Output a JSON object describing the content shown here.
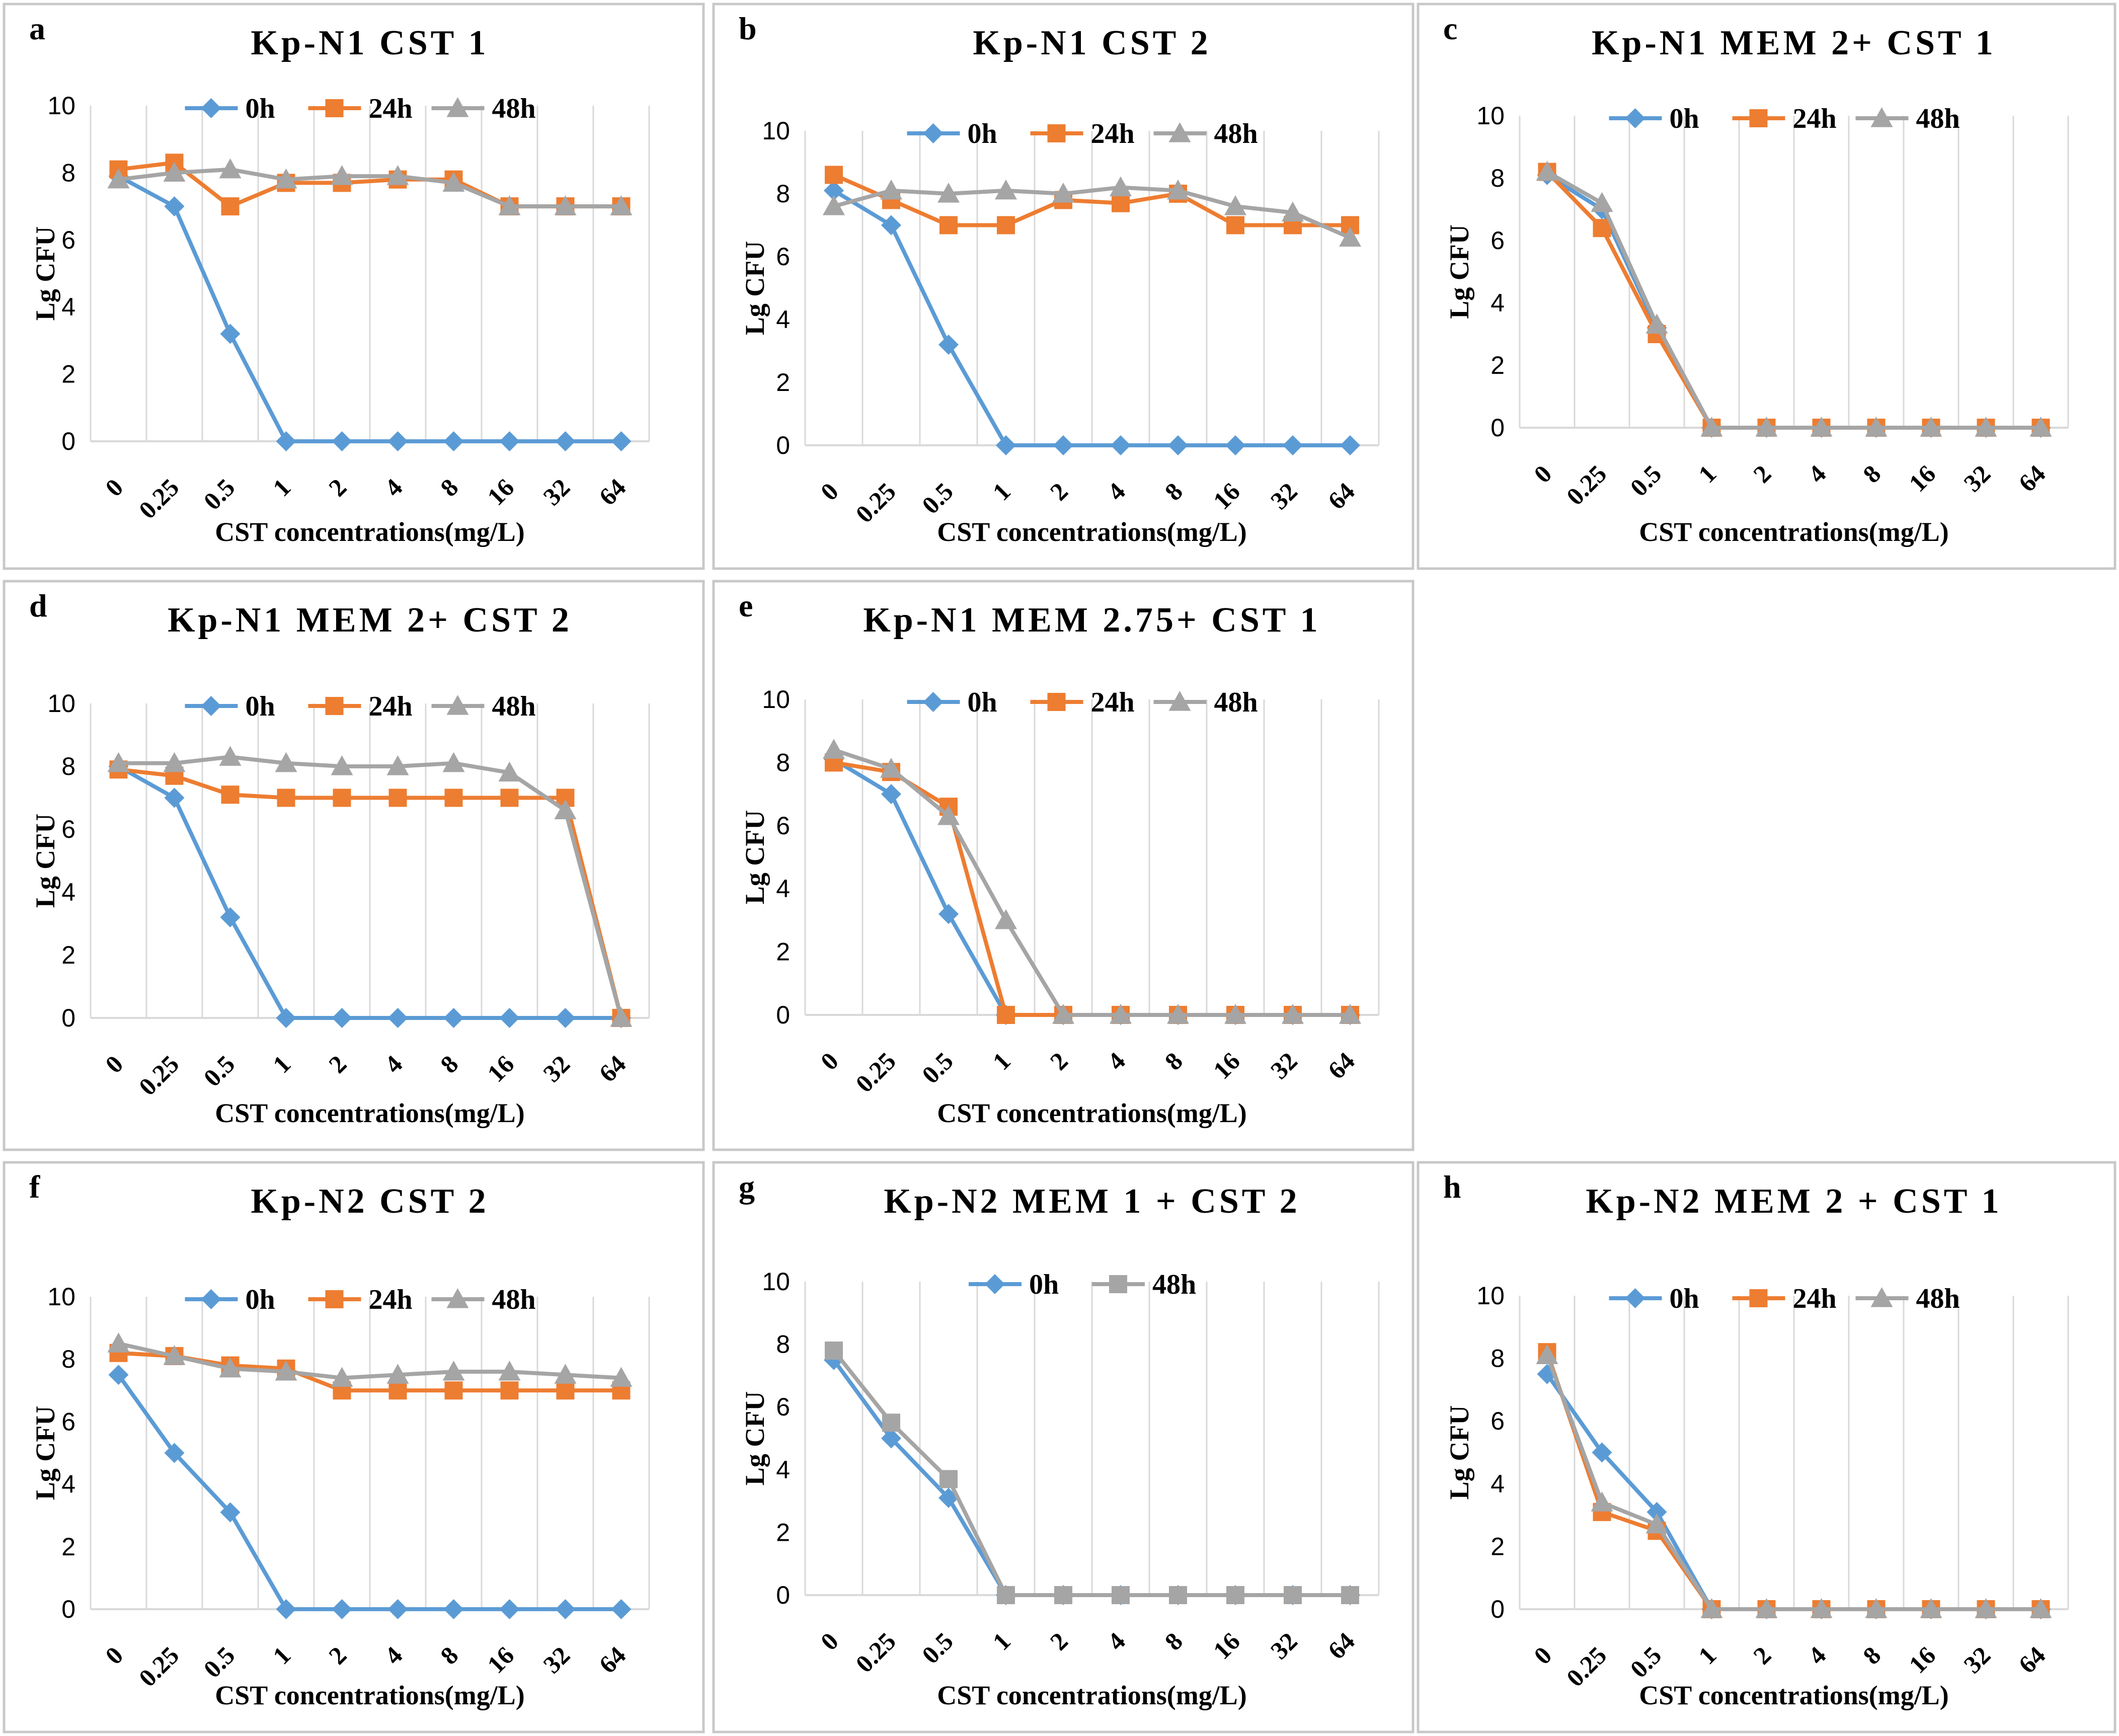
{
  "colors": {
    "0h": "#5b9bd5",
    "24h": "#ed7d31",
    "48h": "#a5a5a5"
  },
  "markers": {
    "0h": "diamond",
    "24h": "square",
    "48h": "triangle"
  },
  "chart_data": [
    {
      "panel": "a",
      "type": "line",
      "title": "Kp-N1 CST 1",
      "xlabel": "CST concentrations(mg/L)",
      "ylabel": "Lg CFU",
      "categories": [
        "0",
        "0.25",
        "0.5",
        "1",
        "2",
        "4",
        "8",
        "16",
        "32",
        "64"
      ],
      "ylim": [
        0,
        10
      ],
      "yticks": [
        "0",
        "2",
        "4",
        "6",
        "8",
        "10"
      ],
      "grid": "vertical",
      "legend": "top",
      "series": [
        {
          "name": "0h",
          "marker": "diamond",
          "values": [
            7.9,
            7.0,
            3.2,
            0,
            0,
            0,
            0,
            0,
            0,
            0
          ]
        },
        {
          "name": "24h",
          "marker": "square",
          "values": [
            8.1,
            8.3,
            7.0,
            7.7,
            7.7,
            7.8,
            7.8,
            7.0,
            7.0,
            7.0
          ]
        },
        {
          "name": "48h",
          "marker": "triangle",
          "values": [
            7.8,
            8.0,
            8.1,
            7.8,
            7.9,
            7.9,
            7.7,
            7.0,
            7.0,
            7.0
          ]
        }
      ]
    },
    {
      "panel": "b",
      "type": "line",
      "title": "Kp-N1 CST 2",
      "xlabel": "CST concentrations(mg/L)",
      "ylabel": "Lg CFU",
      "categories": [
        "0",
        "0.25",
        "0.5",
        "1",
        "2",
        "4",
        "8",
        "16",
        "32",
        "64"
      ],
      "ylim": [
        0,
        10
      ],
      "yticks": [
        "0",
        "2",
        "4",
        "6",
        "8",
        "10"
      ],
      "grid": "vertical",
      "legend": "top",
      "series": [
        {
          "name": "0h",
          "marker": "diamond",
          "values": [
            8.1,
            7.0,
            3.2,
            0,
            0,
            0,
            0,
            0,
            0,
            0
          ]
        },
        {
          "name": "24h",
          "marker": "square",
          "values": [
            8.6,
            7.8,
            7.0,
            7.0,
            7.8,
            7.7,
            8.0,
            7.0,
            7.0,
            7.0
          ]
        },
        {
          "name": "48h",
          "marker": "triangle",
          "values": [
            7.6,
            8.1,
            8.0,
            8.1,
            8.0,
            8.2,
            8.1,
            7.6,
            7.4,
            6.6
          ]
        }
      ]
    },
    {
      "panel": "c",
      "type": "line",
      "title": "Kp-N1 MEM 2+ CST 1",
      "xlabel": "CST concentrations(mg/L)",
      "ylabel": "Lg CFU",
      "categories": [
        "0",
        "0.25",
        "0.5",
        "1",
        "2",
        "4",
        "8",
        "16",
        "32",
        "64"
      ],
      "ylim": [
        0,
        10
      ],
      "yticks": [
        "0",
        "2",
        "4",
        "6",
        "8",
        "10"
      ],
      "grid": "vertical",
      "legend": "top",
      "series": [
        {
          "name": "0h",
          "marker": "diamond",
          "values": [
            8.1,
            7.0,
            3.2,
            0,
            0,
            0,
            0,
            0,
            0,
            0
          ]
        },
        {
          "name": "24h",
          "marker": "square",
          "values": [
            8.2,
            6.4,
            3.0,
            0,
            0,
            0,
            0,
            0,
            0,
            0
          ]
        },
        {
          "name": "48h",
          "marker": "triangle",
          "values": [
            8.2,
            7.2,
            3.3,
            0,
            0,
            0,
            0,
            0,
            0,
            0
          ]
        }
      ]
    },
    {
      "panel": "d",
      "type": "line",
      "title": "Kp-N1 MEM 2+ CST 2",
      "xlabel": "CST concentrations(mg/L)",
      "ylabel": "Lg CFU",
      "categories": [
        "0",
        "0.25",
        "0.5",
        "1",
        "2",
        "4",
        "8",
        "16",
        "32",
        "64"
      ],
      "ylim": [
        0,
        10
      ],
      "yticks": [
        "0",
        "2",
        "4",
        "6",
        "8",
        "10"
      ],
      "grid": "vertical",
      "legend": "top",
      "series": [
        {
          "name": "0h",
          "marker": "diamond",
          "values": [
            8.0,
            7.0,
            3.2,
            0,
            0,
            0,
            0,
            0,
            0,
            0
          ]
        },
        {
          "name": "24h",
          "marker": "square",
          "values": [
            7.9,
            7.7,
            7.1,
            7.0,
            7.0,
            7.0,
            7.0,
            7.0,
            7.0,
            0
          ]
        },
        {
          "name": "48h",
          "marker": "triangle",
          "values": [
            8.1,
            8.1,
            8.3,
            8.1,
            8.0,
            8.0,
            8.1,
            7.8,
            6.6,
            0
          ]
        }
      ]
    },
    {
      "panel": "e",
      "type": "line",
      "title": "Kp-N1 MEM 2.75+ CST 1",
      "xlabel": "CST concentrations(mg/L)",
      "ylabel": "Lg CFU",
      "categories": [
        "0",
        "0.25",
        "0.5",
        "1",
        "2",
        "4",
        "8",
        "16",
        "32",
        "64"
      ],
      "ylim": [
        0,
        10
      ],
      "yticks": [
        "0",
        "2",
        "4",
        "6",
        "8",
        "10"
      ],
      "grid": "vertical",
      "legend": "top",
      "series": [
        {
          "name": "0h",
          "marker": "diamond",
          "values": [
            8.1,
            7.0,
            3.2,
            0,
            0,
            0,
            0,
            0,
            0,
            0
          ]
        },
        {
          "name": "24h",
          "marker": "square",
          "values": [
            8.0,
            7.7,
            6.6,
            0,
            0,
            0,
            0,
            0,
            0,
            0
          ]
        },
        {
          "name": "48h",
          "marker": "triangle",
          "values": [
            8.4,
            7.8,
            6.3,
            3.0,
            0,
            0,
            0,
            0,
            0,
            0
          ]
        }
      ]
    },
    {
      "panel": "f",
      "type": "line",
      "title": "Kp-N2 CST 2",
      "xlabel": "CST concentrations(mg/L)",
      "ylabel": "Lg CFU",
      "categories": [
        "0",
        "0.25",
        "0.5",
        "1",
        "2",
        "4",
        "8",
        "16",
        "32",
        "64"
      ],
      "ylim": [
        0,
        10
      ],
      "yticks": [
        "0",
        "2",
        "4",
        "6",
        "8",
        "10"
      ],
      "grid": "vertical",
      "legend": "top",
      "series": [
        {
          "name": "0h",
          "marker": "diamond",
          "values": [
            7.5,
            5.0,
            3.1,
            0,
            0,
            0,
            0,
            0,
            0,
            0
          ]
        },
        {
          "name": "24h",
          "marker": "square",
          "values": [
            8.2,
            8.1,
            7.8,
            7.7,
            7.0,
            7.0,
            7.0,
            7.0,
            7.0,
            7.0
          ]
        },
        {
          "name": "48h",
          "marker": "triangle",
          "values": [
            8.5,
            8.1,
            7.7,
            7.6,
            7.4,
            7.5,
            7.6,
            7.6,
            7.5,
            7.4
          ]
        }
      ]
    },
    {
      "panel": "g",
      "type": "line",
      "title": "Kp-N2 MEM 1 + CST 2",
      "xlabel": "CST concentrations(mg/L)",
      "ylabel": "Lg CFU",
      "categories": [
        "0",
        "0.25",
        "0.5",
        "1",
        "2",
        "4",
        "8",
        "16",
        "32",
        "64"
      ],
      "ylim": [
        0,
        10
      ],
      "yticks": [
        "0",
        "2",
        "4",
        "6",
        "8",
        "10"
      ],
      "grid": "vertical",
      "legend": "top",
      "series": [
        {
          "name": "0h",
          "marker": "diamond",
          "colorKey": "0h",
          "values": [
            7.5,
            5.0,
            3.1,
            0,
            0,
            0,
            0,
            0,
            0,
            0
          ]
        },
        {
          "name": "48h",
          "marker": "square",
          "colorKey": "48h",
          "values": [
            7.8,
            5.5,
            3.7,
            0,
            0,
            0,
            0,
            0,
            0,
            0
          ]
        }
      ]
    },
    {
      "panel": "h",
      "type": "line",
      "title": "Kp-N2 MEM 2 + CST 1",
      "xlabel": "CST concentrations(mg/L)",
      "ylabel": "Lg CFU",
      "categories": [
        "0",
        "0.25",
        "0.5",
        "1",
        "2",
        "4",
        "8",
        "16",
        "32",
        "64"
      ],
      "ylim": [
        0,
        10
      ],
      "yticks": [
        "0",
        "2",
        "4",
        "6",
        "8",
        "10"
      ],
      "grid": "vertical",
      "legend": "top",
      "series": [
        {
          "name": "0h",
          "marker": "diamond",
          "values": [
            7.5,
            5.0,
            3.1,
            0,
            0,
            0,
            0,
            0,
            0,
            0
          ]
        },
        {
          "name": "24h",
          "marker": "square",
          "values": [
            8.2,
            3.1,
            2.5,
            0,
            0,
            0,
            0,
            0,
            0,
            0
          ]
        },
        {
          "name": "48h",
          "marker": "triangle",
          "values": [
            8.1,
            3.4,
            2.7,
            0,
            0,
            0,
            0,
            0,
            0,
            0
          ]
        }
      ]
    }
  ]
}
